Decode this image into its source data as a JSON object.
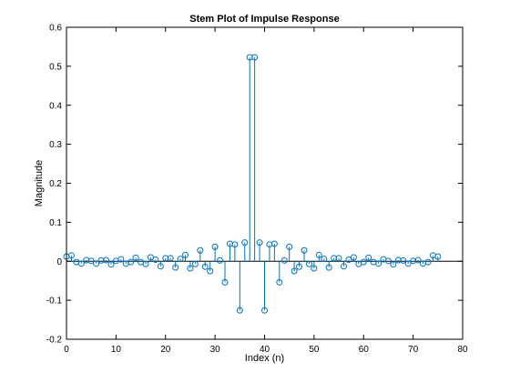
{
  "chart_data": {
    "type": "stem",
    "title": "Stem Plot of Impulse Response",
    "xlabel": "Index (n)",
    "ylabel": "Magnitude",
    "xlim": [
      0,
      80
    ],
    "ylim": [
      -0.2,
      0.6
    ],
    "xticks": [
      0,
      10,
      20,
      30,
      40,
      50,
      60,
      70,
      80
    ],
    "yticks": [
      -0.2,
      -0.1,
      0,
      0.1,
      0.2,
      0.3,
      0.4,
      0.5,
      0.6
    ],
    "xtick_labels": [
      "0",
      "10",
      "20",
      "30",
      "40",
      "50",
      "60",
      "70",
      "80"
    ],
    "ytick_labels": [
      "-0.2",
      "-0.1",
      "0",
      "0.1",
      "0.2",
      "0.3",
      "0.4",
      "0.5",
      "0.6"
    ],
    "grid": false,
    "baseline": 0,
    "marker": "circle-open",
    "color": "#0072bd",
    "x": [
      0,
      1,
      2,
      3,
      4,
      5,
      6,
      7,
      8,
      9,
      10,
      11,
      12,
      13,
      14,
      15,
      16,
      17,
      18,
      19,
      20,
      21,
      22,
      23,
      24,
      25,
      26,
      27,
      28,
      29,
      30,
      31,
      32,
      33,
      34,
      35,
      36,
      37,
      38,
      39,
      40,
      41,
      42,
      43,
      44,
      45,
      46,
      47,
      48,
      49,
      50,
      51,
      52,
      53,
      54,
      55,
      56,
      57,
      58,
      59,
      60,
      61,
      62,
      63,
      64,
      65,
      66,
      67,
      68,
      69,
      70,
      71,
      72,
      73,
      74,
      75
    ],
    "values": [
      0.012,
      0.015,
      -0.002,
      -0.006,
      0.003,
      0.001,
      -0.006,
      0.002,
      0.003,
      -0.008,
      0.001,
      0.005,
      -0.006,
      -0.002,
      0.009,
      -0.002,
      -0.007,
      0.01,
      0.004,
      -0.013,
      0.008,
      0.008,
      -0.016,
      0.006,
      0.016,
      -0.018,
      -0.007,
      0.028,
      -0.014,
      -0.025,
      0.037,
      0.002,
      -0.054,
      0.045,
      0.043,
      -0.126,
      0.048,
      0.523,
      0.523,
      0.048,
      -0.126,
      0.043,
      0.045,
      -0.054,
      0.002,
      0.037,
      -0.025,
      -0.014,
      0.028,
      -0.007,
      -0.018,
      0.016,
      0.006,
      -0.016,
      0.008,
      0.008,
      -0.013,
      0.004,
      0.01,
      -0.007,
      -0.002,
      0.009,
      -0.002,
      -0.006,
      0.005,
      0.001,
      -0.008,
      0.003,
      0.002,
      -0.006,
      0.001,
      0.003,
      -0.006,
      -0.002,
      0.015,
      0.012
    ]
  }
}
